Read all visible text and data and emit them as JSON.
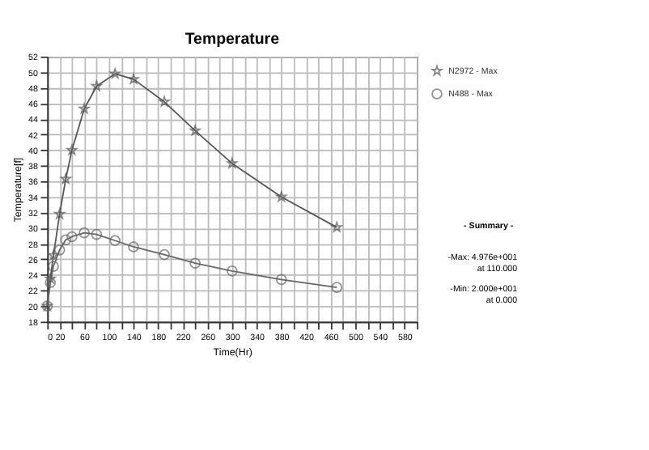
{
  "chart_data": {
    "type": "line",
    "title": "Temperature",
    "xlabel": "Time(Hr)",
    "ylabel": "Temperature[f]",
    "xlim": [
      0,
      600
    ],
    "ylim": [
      18,
      52
    ],
    "xticks": [
      0,
      20,
      {
        "value": 40,
        "label": null
      },
      60,
      {
        "value": 80,
        "label": null
      },
      100,
      {
        "value": 120,
        "label": null
      },
      140,
      {
        "value": 160,
        "label": null
      },
      180,
      {
        "value": 200,
        "label": null
      },
      220,
      {
        "value": 240,
        "label": null
      },
      260,
      {
        "value": 280,
        "label": null
      },
      300,
      {
        "value": 320,
        "label": null
      },
      340,
      {
        "value": 360,
        "label": null
      },
      380,
      {
        "value": 400,
        "label": null
      },
      420,
      {
        "value": 440,
        "label": null
      },
      460,
      {
        "value": 480,
        "label": null
      },
      500,
      {
        "value": 520,
        "label": null
      },
      540,
      {
        "value": 560,
        "label": null
      },
      580,
      {
        "value": 600,
        "label": null
      }
    ],
    "yticks": [
      18,
      20,
      22,
      24,
      26,
      28,
      30,
      32,
      34,
      36,
      38,
      40,
      42,
      44,
      46,
      48,
      50,
      52
    ],
    "grid": true,
    "legend": "top right",
    "line_style": "solid",
    "x": [
      0,
      5,
      10,
      20,
      30,
      40,
      60,
      80,
      110,
      140,
      190,
      240,
      300,
      380,
      470
    ],
    "series": [
      {
        "name": "N2972 - Max",
        "color": "#555555",
        "marker": "star",
        "values": [
          20.0,
          23.5,
          26.5,
          31.8,
          36.3,
          40.0,
          45.3,
          48.2,
          49.8,
          49.1,
          46.2,
          42.5,
          38.3,
          34.0,
          30.1
        ]
      },
      {
        "name": "N488 - Max",
        "color": "#666666",
        "marker": "circle",
        "values": [
          20.0,
          23.0,
          25.1,
          27.2,
          28.5,
          28.9,
          29.4,
          29.2,
          28.4,
          27.6,
          26.6,
          25.5,
          24.5,
          23.4,
          22.4
        ]
      }
    ],
    "annotations": [
      "- Summary -",
      "-Max: 4.976e+001\nat 110.000",
      "-Min: 2.000e+001\nat 0.000"
    ]
  }
}
